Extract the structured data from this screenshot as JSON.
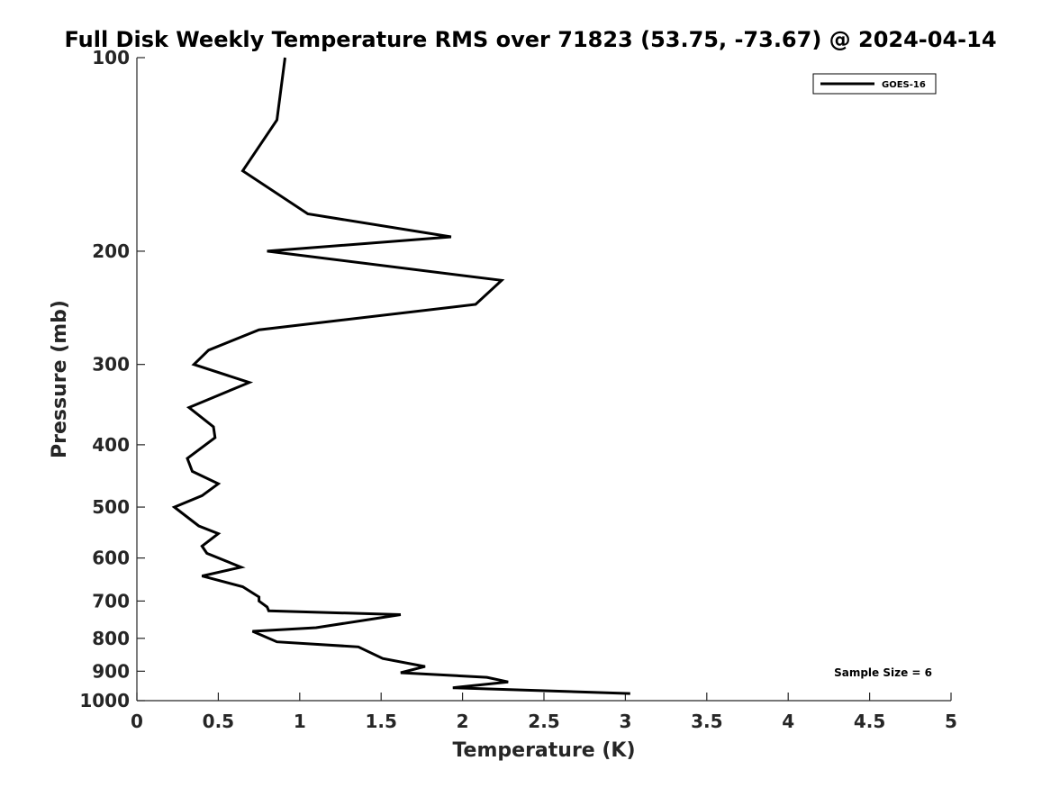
{
  "chart_data": {
    "type": "line",
    "title": "Full Disk Weekly Temperature RMS over 71823 (53.75, -73.67) @ 2024-04-14",
    "xlabel": "Temperature (K)",
    "ylabel": "Pressure (mb)",
    "xlim": [
      0,
      5
    ],
    "ylim": [
      100,
      1000
    ],
    "y_scale": "log",
    "y_reversed": true,
    "xticks": [
      0,
      0.5,
      1,
      1.5,
      2,
      2.5,
      3,
      3.5,
      4,
      4.5,
      5
    ],
    "xtick_labels": [
      "0",
      "0.5",
      "1",
      "1.5",
      "2",
      "2.5",
      "3",
      "3.5",
      "4",
      "4.5",
      "5"
    ],
    "yticks": [
      100,
      200,
      300,
      400,
      500,
      600,
      700,
      800,
      900,
      1000
    ],
    "ytick_labels": [
      "100",
      "200",
      "300",
      "400",
      "500",
      "600",
      "700",
      "800",
      "900",
      "1000"
    ],
    "grid": false,
    "legend_position": "top-right",
    "series": [
      {
        "name": "GOES-16",
        "color": "#000000",
        "points": [
          [
            0.91,
            100
          ],
          [
            0.86,
            125
          ],
          [
            0.65,
            150
          ],
          [
            1.05,
            175
          ],
          [
            1.93,
            190
          ],
          [
            0.8,
            200
          ],
          [
            2.24,
            222
          ],
          [
            2.08,
            242
          ],
          [
            0.75,
            265
          ],
          [
            0.44,
            285
          ],
          [
            0.35,
            300
          ],
          [
            0.69,
            320
          ],
          [
            0.32,
            350
          ],
          [
            0.47,
            375
          ],
          [
            0.48,
            390
          ],
          [
            0.31,
            420
          ],
          [
            0.34,
            440
          ],
          [
            0.5,
            460
          ],
          [
            0.4,
            480
          ],
          [
            0.23,
            500
          ],
          [
            0.38,
            535
          ],
          [
            0.5,
            550
          ],
          [
            0.4,
            575
          ],
          [
            0.43,
            590
          ],
          [
            0.64,
            620
          ],
          [
            0.4,
            640
          ],
          [
            0.65,
            665
          ],
          [
            0.75,
            690
          ],
          [
            0.75,
            700
          ],
          [
            0.8,
            715
          ],
          [
            0.81,
            725
          ],
          [
            1.62,
            735
          ],
          [
            1.1,
            770
          ],
          [
            0.71,
            780
          ],
          [
            0.86,
            810
          ],
          [
            1.36,
            825
          ],
          [
            1.51,
            860
          ],
          [
            1.77,
            885
          ],
          [
            1.62,
            905
          ],
          [
            2.15,
            920
          ],
          [
            2.28,
            935
          ],
          [
            1.94,
            955
          ],
          [
            3.03,
            975
          ]
        ]
      }
    ],
    "annotations": [
      "Sample Size = 6"
    ]
  }
}
